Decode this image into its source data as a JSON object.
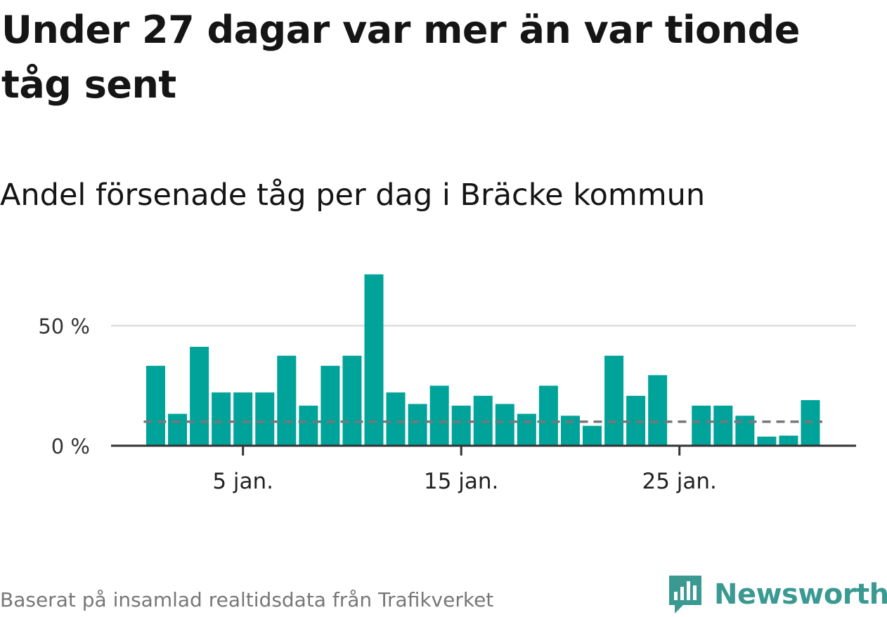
{
  "title": "Under 27 dagar var mer än var tionde tåg sent",
  "subtitle": "Andel försenade tåg per dag i Bräcke kommun",
  "source": "Baserat på insamlad realtidsdata från Trafikverket",
  "brand": {
    "name": "Newsworthy",
    "color": "#3a9a92"
  },
  "colors": {
    "bar": "#00a39a",
    "reference": "#777777",
    "grid": "#dddddd",
    "axis": "#333333"
  },
  "chart_data": {
    "type": "bar",
    "x": [
      1,
      2,
      3,
      4,
      5,
      6,
      7,
      8,
      9,
      10,
      11,
      12,
      13,
      14,
      15,
      16,
      17,
      18,
      19,
      20,
      21,
      22,
      23,
      24,
      25,
      26,
      27,
      28,
      29,
      30,
      31
    ],
    "values": [
      33.3,
      13.3,
      41.2,
      22.2,
      22.2,
      22.2,
      37.5,
      16.7,
      33.3,
      37.5,
      71.4,
      22.2,
      17.4,
      25.0,
      16.7,
      20.8,
      17.4,
      13.3,
      25.0,
      12.5,
      8.3,
      37.5,
      20.8,
      29.4,
      0,
      16.7,
      16.7,
      12.5,
      3.8,
      4.2,
      19.0
    ],
    "reference_value": 10,
    "reference_style": "dashed",
    "xticks": [
      {
        "value": 5,
        "label": "5 jan."
      },
      {
        "value": 15,
        "label": "15 jan."
      },
      {
        "value": 25,
        "label": "25 jan."
      }
    ],
    "yticks": [
      {
        "value": 0,
        "label": "0 %"
      },
      {
        "value": 50,
        "label": "50 %"
      }
    ],
    "ylim": [
      0,
      75
    ],
    "grid": true
  }
}
